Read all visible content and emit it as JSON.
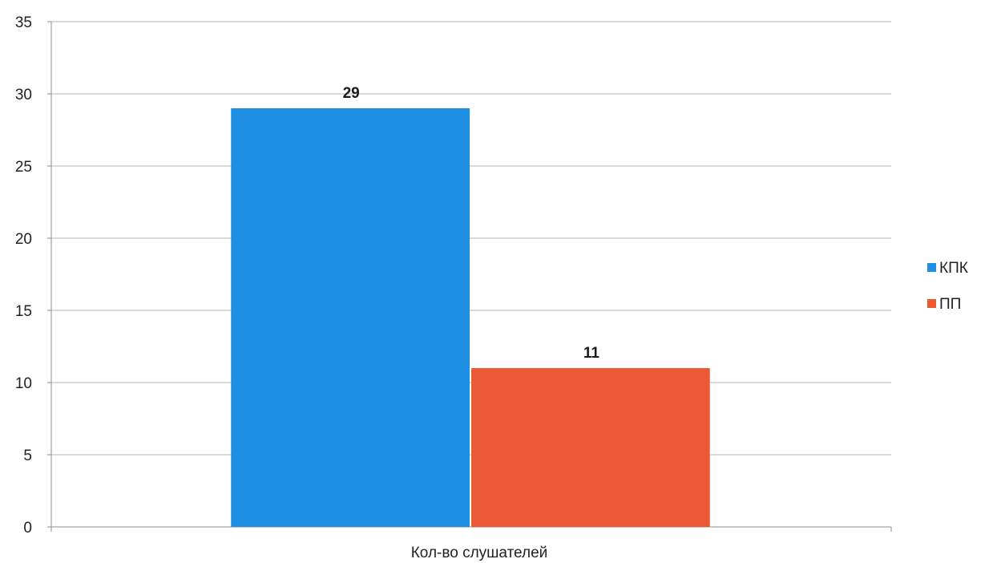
{
  "chart_data": {
    "type": "bar",
    "categories": [
      "Кол-во слушателей"
    ],
    "series": [
      {
        "name": "КПК",
        "values": [
          29
        ],
        "color": "#1e8fe3"
      },
      {
        "name": "ПП",
        "values": [
          11
        ],
        "color": "#ec5a35"
      }
    ],
    "data_labels": [
      "29",
      "11"
    ],
    "ylim": [
      0,
      35
    ],
    "y_ticks": [
      "0",
      "5",
      "10",
      "15",
      "20",
      "25",
      "30",
      "35"
    ],
    "grid": true,
    "legend_position": "right"
  }
}
